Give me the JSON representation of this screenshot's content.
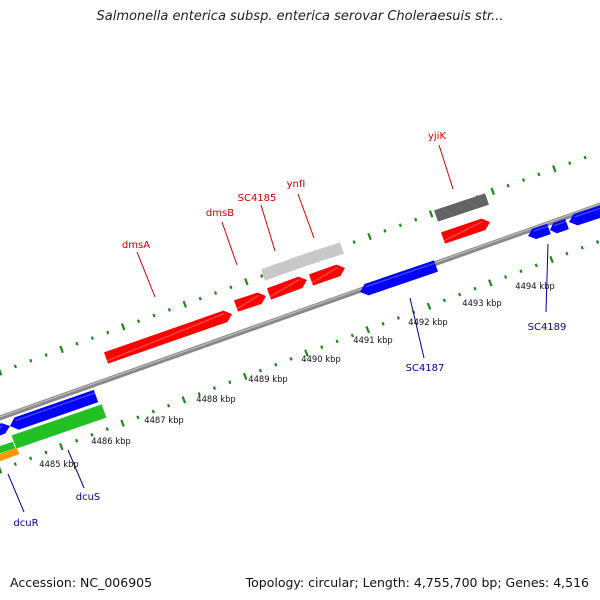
{
  "title": "Salmonella enterica subsp. enterica serovar Choleraesuis str...",
  "footer": {
    "accession": "Accession: NC_006905",
    "topology": "Topology: circular; Length: 4,755,700 bp; Genes: 4,516"
  },
  "ticks": [
    "4485 kbp",
    "4486 kbp",
    "4487 kbp",
    "4488 kbp",
    "4489 kbp",
    "4490 kbp",
    "4491 kbp",
    "4492 kbp",
    "4493 kbp",
    "4494 kbp"
  ],
  "genes_top": [
    "dmsA",
    "dmsB",
    "SC4185",
    "ynfI",
    "yjiK"
  ],
  "genes_bottom": [
    "dcuR",
    "dcuS",
    "SC4187",
    "SC4189"
  ],
  "colors": {
    "forward_gene": "#ff0000",
    "reverse_gene": "#0000ff",
    "rna_light": "#c8c8c8",
    "rna_dark": "#646464",
    "green_feature": "#22c022",
    "orange_feature": "#ff9900",
    "backbone": "#888888",
    "tick_marks": "#1a8a1a",
    "top_label": "#cc0000",
    "bottom_label": "#000099"
  }
}
